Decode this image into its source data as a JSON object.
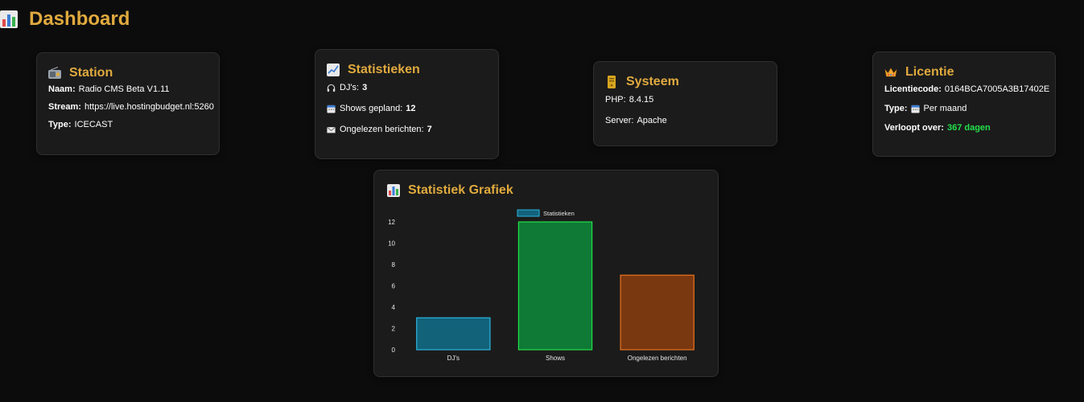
{
  "page": {
    "title": "Dashboard",
    "icon": "bar-chart-icon"
  },
  "station": {
    "title": "Station",
    "icon": "radio-icon",
    "name_label": "Naam:",
    "name_value": "Radio CMS Beta V1.11",
    "stream_label": "Stream:",
    "stream_value": "https://live.hostingbudget.nl:5260",
    "type_label": "Type:",
    "type_value": "ICECAST"
  },
  "stats": {
    "title": "Statistieken",
    "icon": "trend-chart-icon",
    "djs_label": "DJ's:",
    "djs_value": "3",
    "djs_icon": "headphones-icon",
    "shows_label": "Shows gepland:",
    "shows_value": "12",
    "shows_icon": "calendar-icon",
    "msgs_label": "Ongelezen berichten:",
    "msgs_value": "7",
    "msgs_icon": "envelope-icon"
  },
  "system": {
    "title": "Systeem",
    "icon": "server-icon",
    "php_label": "PHP:",
    "php_value": "8.4.15",
    "server_label": "Server:",
    "server_value": "Apache"
  },
  "license": {
    "title": "Licentie",
    "icon": "crown-icon",
    "code_label": "Licentiecode:",
    "code_value": "0164BCA7005A3B17402E",
    "type_label": "Type:",
    "type_value": "Per maand",
    "type_icon": "calendar-icon",
    "expires_label": "Verloopt over:",
    "expires_value": "367 dagen",
    "expires_color": "#22e04a"
  },
  "chart_card": {
    "title": "Statistiek Grafiek",
    "icon": "bar-chart-icon"
  },
  "colors": {
    "accent": "#e0aa3e",
    "background": "#0c0c0d",
    "card": "#1b1b1b"
  },
  "chart_data": {
    "type": "bar",
    "categories": [
      "DJ's",
      "Shows",
      "Ongelezen berichten"
    ],
    "series": [
      {
        "name": "Statistieken",
        "values": [
          3,
          12,
          7
        ]
      }
    ],
    "bar_colors": [
      {
        "fill": "#12627a",
        "stroke": "#29b6e0"
      },
      {
        "fill": "#0f7a35",
        "stroke": "#22e04a"
      },
      {
        "fill": "#7a3810",
        "stroke": "#e8731f"
      }
    ],
    "ylim": [
      0,
      12
    ],
    "yticks": [
      0,
      2,
      4,
      6,
      8,
      10,
      12
    ],
    "legend": "top-center",
    "grid": false
  }
}
